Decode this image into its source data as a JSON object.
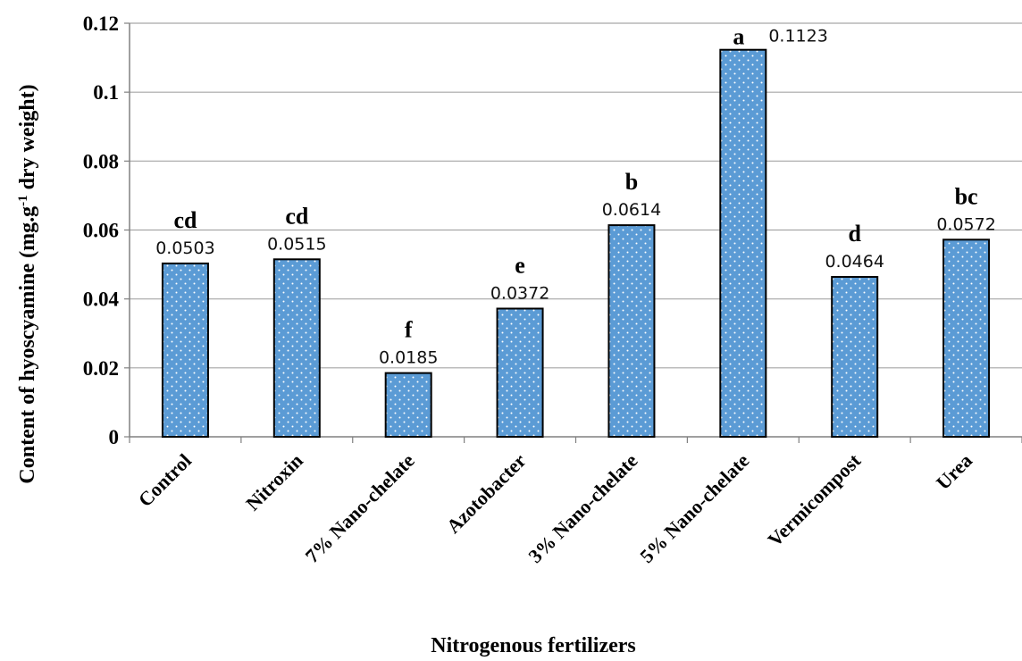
{
  "chart_data": {
    "type": "bar",
    "categories": [
      "Control",
      "Nitroxin",
      "7% Nano-chelate",
      "Azotobacter",
      "3% Nano-chelate",
      "5% Nano-chelate",
      "Vermicompost",
      "Urea"
    ],
    "values": [
      0.0503,
      0.0515,
      0.0185,
      0.0372,
      0.0614,
      0.1123,
      0.0464,
      0.0572
    ],
    "value_labels": [
      "0.0503",
      "0.0515",
      "0.0185",
      "0.0372",
      "0.0614",
      "0.1123",
      "0.0464",
      "0.0572"
    ],
    "significance_letters": [
      "cd",
      "cd",
      "f",
      "e",
      "b",
      "a",
      "d",
      "bc"
    ],
    "xlabel": "Nitrogenous fertilizers",
    "ylabel": "Content of hyoscyamine (mg.g",
    "ylabel_superscript": "-1",
    "ylabel_suffix": " dry weight)",
    "ylim": [
      0,
      0.12
    ],
    "yticks": [
      "0",
      "0.02",
      "0.04",
      "0.06",
      "0.08",
      "0.1",
      "0.12"
    ],
    "grid": true,
    "bar_color": "#5b9bd5",
    "bar_pattern": "white-dots"
  }
}
